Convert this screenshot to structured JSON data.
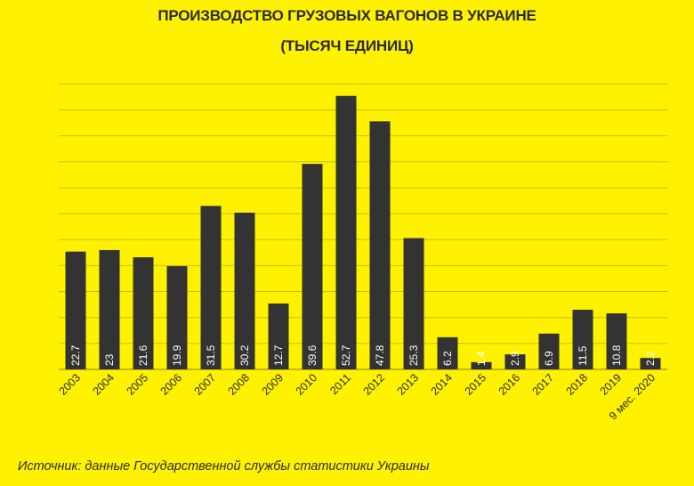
{
  "chart_data": {
    "type": "bar",
    "title": "ПРОИЗВОДСТВО ГРУЗОВЫХ ВАГОНОВ В УКРАИНЕ",
    "subtitle": "(ТЫСЯЧ ЕДИНИЦ)",
    "categories": [
      "2003",
      "2004",
      "2005",
      "2006",
      "2007",
      "2008",
      "2009",
      "2010",
      "2011",
      "2012",
      "2013",
      "2014",
      "2015",
      "2016",
      "2017",
      "2018",
      "2019",
      "9 мес. 2020"
    ],
    "values": [
      22.7,
      23,
      21.6,
      19.9,
      31.5,
      30.2,
      12.7,
      39.6,
      52.7,
      47.8,
      25.3,
      6.2,
      1.4,
      2.9,
      6.9,
      11.5,
      10.8,
      2.2
    ],
    "labels": [
      "22.7",
      "23",
      "21.6",
      "19.9",
      "31.5",
      "30.2",
      "12.7",
      "39.6",
      "52.7",
      "47.8",
      "25.3",
      "6.2",
      "1.4",
      "2.9",
      "6.9",
      "11.5",
      "10.8",
      "2.2"
    ],
    "xlabel": "",
    "ylabel": "",
    "ylim": [
      0,
      55
    ],
    "grid": true,
    "bar_color": "#333333",
    "background_color": "#fff200"
  },
  "source": "Источник:  данные Государственной службы статистики Украины"
}
